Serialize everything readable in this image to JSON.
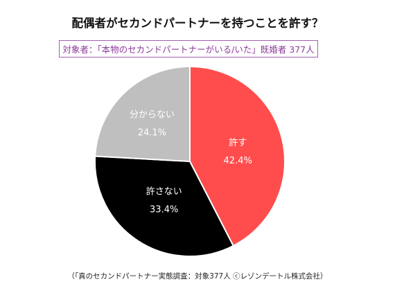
{
  "title": "配偶者がセカンドパートナーを持つことを許す？",
  "subtitle": "対象者：「本物のセカンドパートナーがいる/いた」既婚者 377人",
  "footer": "（「真のセカンドパートナー実態調査：対象377人 ⓒレゾンデートル株式会社）",
  "chart_data": {
    "type": "pie",
    "title": "配偶者がセカンドパートナーを持つことを許す？",
    "slices": [
      {
        "label": "許す",
        "value": 42.4,
        "display": "42.4%",
        "color": "#ff4d4d",
        "label_color": "#ffffff"
      },
      {
        "label": "許さない",
        "value": 33.4,
        "display": "33.4%",
        "color": "#000000",
        "label_color": "#ffffff"
      },
      {
        "label": "分からない",
        "value": 24.1,
        "display": "24.1%",
        "color": "#bfbfbf",
        "label_color": "#ffffff"
      }
    ],
    "start_angle_deg": 0,
    "direction": "clockwise",
    "slice_border_color": "#ffffff"
  }
}
